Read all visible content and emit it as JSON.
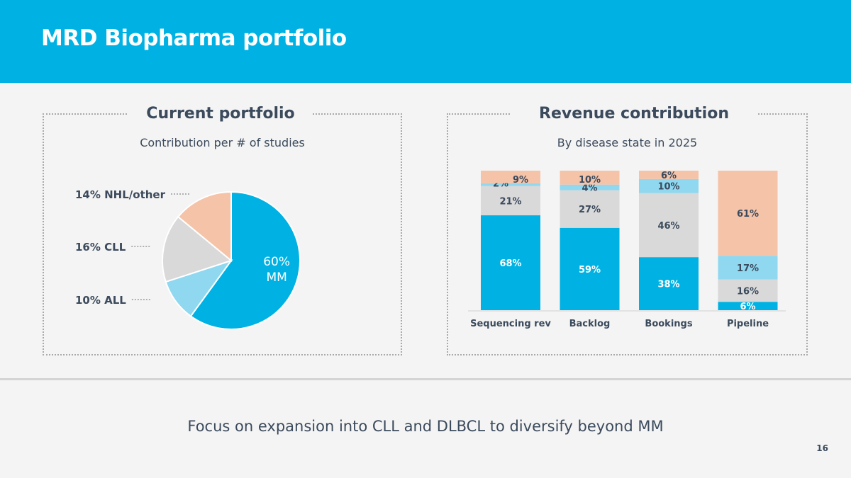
{
  "slide": {
    "title": "MRD Biopharma portfolio",
    "tagline": "Focus on expansion into CLL and DLBCL to diversify beyond MM",
    "page_number": "16"
  },
  "left_panel": {
    "title": "Current portfolio",
    "subtitle": "Contribution per # of studies"
  },
  "right_panel": {
    "title": "Revenue contribution",
    "subtitle": "By disease state in 2025"
  },
  "colors": {
    "header": "#00b2e3",
    "mm": "#00b2e3",
    "all": "#8fd8ef",
    "cll": "#d9d9d9",
    "nhl": "#f5c3a8",
    "text": "#3b4a5c"
  },
  "chart_data": [
    {
      "type": "pie",
      "title": "Current portfolio",
      "subtitle": "Contribution per # of studies",
      "slices": [
        {
          "name": "MM",
          "value": 60,
          "label_line1": "60%",
          "label_line2": "MM",
          "color": "#00b2e3"
        },
        {
          "name": "ALL",
          "value": 10,
          "label": "10% ALL",
          "color": "#8fd8ef"
        },
        {
          "name": "CLL",
          "value": 16,
          "label": "16% CLL",
          "color": "#d9d9d9"
        },
        {
          "name": "NHL/other",
          "value": 14,
          "label": "14% NHL/other",
          "color": "#f5c3a8"
        }
      ]
    },
    {
      "type": "bar",
      "stacked": true,
      "percent": true,
      "title": "Revenue contribution",
      "subtitle": "By disease state in 2025",
      "categories": [
        "Sequencing rev",
        "Backlog",
        "Bookings",
        "Pipeline"
      ],
      "ylim": [
        0,
        100
      ],
      "series": [
        {
          "name": "MM",
          "color": "#00b2e3",
          "values": [
            68,
            59,
            38,
            6
          ],
          "labels": [
            "68%",
            "59%",
            "38%",
            "6%"
          ]
        },
        {
          "name": "CLL",
          "color": "#d9d9d9",
          "values": [
            21,
            27,
            46,
            16
          ],
          "labels": [
            "21%",
            "27%",
            "46%",
            "16%"
          ]
        },
        {
          "name": "ALL",
          "color": "#8fd8ef",
          "values": [
            2,
            4,
            10,
            17
          ],
          "labels": [
            "2%",
            "4%",
            "10%",
            "17%"
          ]
        },
        {
          "name": "NHL/other",
          "color": "#f5c3a8",
          "values": [
            9,
            10,
            6,
            61
          ],
          "labels": [
            "9%",
            "10%",
            "6%",
            "61%"
          ]
        }
      ]
    }
  ]
}
